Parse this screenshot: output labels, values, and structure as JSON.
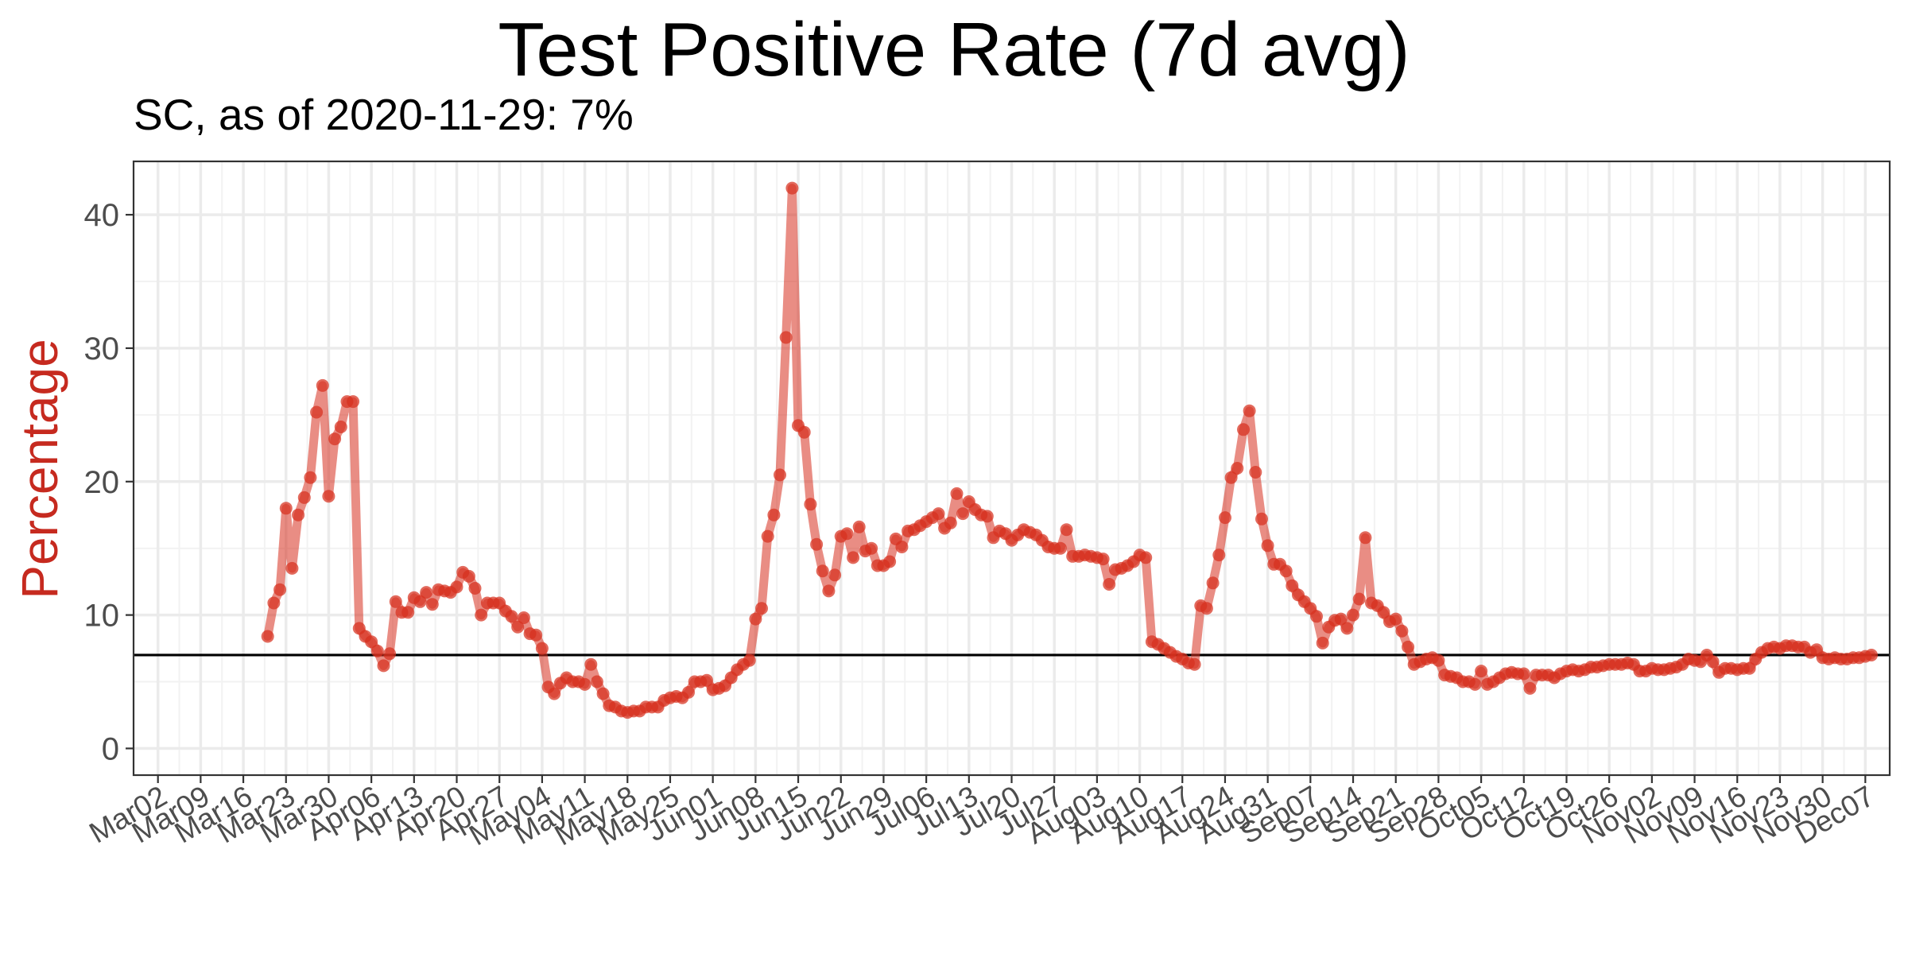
{
  "chart_data": {
    "type": "line",
    "title": "Test Positive Rate (7d avg)",
    "subtitle": "SC, as of 2020-11-29:  7%",
    "xlabel": "",
    "ylabel": "Percentage",
    "x_axis": "date",
    "xlim": [
      "2020-02-27",
      "2020-12-11"
    ],
    "ylim": [
      -2,
      44
    ],
    "y_ticks": [
      0,
      10,
      20,
      30,
      40
    ],
    "x_ticks": [
      {
        "date": "2020-03-02",
        "label": "Mar02"
      },
      {
        "date": "2020-03-09",
        "label": "Mar09"
      },
      {
        "date": "2020-03-16",
        "label": "Mar16"
      },
      {
        "date": "2020-03-23",
        "label": "Mar23"
      },
      {
        "date": "2020-03-30",
        "label": "Mar30"
      },
      {
        "date": "2020-04-06",
        "label": "Apr06"
      },
      {
        "date": "2020-04-13",
        "label": "Apr13"
      },
      {
        "date": "2020-04-20",
        "label": "Apr20"
      },
      {
        "date": "2020-04-27",
        "label": "Apr27"
      },
      {
        "date": "2020-05-04",
        "label": "May04"
      },
      {
        "date": "2020-05-11",
        "label": "May11"
      },
      {
        "date": "2020-05-18",
        "label": "May18"
      },
      {
        "date": "2020-05-25",
        "label": "May25"
      },
      {
        "date": "2020-06-01",
        "label": "Jun01"
      },
      {
        "date": "2020-06-08",
        "label": "Jun08"
      },
      {
        "date": "2020-06-15",
        "label": "Jun15"
      },
      {
        "date": "2020-06-22",
        "label": "Jun22"
      },
      {
        "date": "2020-06-29",
        "label": "Jun29"
      },
      {
        "date": "2020-07-06",
        "label": "Jul06"
      },
      {
        "date": "2020-07-13",
        "label": "Jul13"
      },
      {
        "date": "2020-07-20",
        "label": "Jul20"
      },
      {
        "date": "2020-07-27",
        "label": "Jul27"
      },
      {
        "date": "2020-08-03",
        "label": "Aug03"
      },
      {
        "date": "2020-08-10",
        "label": "Aug10"
      },
      {
        "date": "2020-08-17",
        "label": "Aug17"
      },
      {
        "date": "2020-08-24",
        "label": "Aug24"
      },
      {
        "date": "2020-08-31",
        "label": "Aug31"
      },
      {
        "date": "2020-09-07",
        "label": "Sep07"
      },
      {
        "date": "2020-09-14",
        "label": "Sep14"
      },
      {
        "date": "2020-09-21",
        "label": "Sep21"
      },
      {
        "date": "2020-09-28",
        "label": "Sep28"
      },
      {
        "date": "2020-10-05",
        "label": "Oct05"
      },
      {
        "date": "2020-10-12",
        "label": "Oct12"
      },
      {
        "date": "2020-10-19",
        "label": "Oct19"
      },
      {
        "date": "2020-10-26",
        "label": "Oct26"
      },
      {
        "date": "2020-11-02",
        "label": "Nov02"
      },
      {
        "date": "2020-11-09",
        "label": "Nov09"
      },
      {
        "date": "2020-11-16",
        "label": "Nov16"
      },
      {
        "date": "2020-11-23",
        "label": "Nov23"
      },
      {
        "date": "2020-11-30",
        "label": "Nov30"
      },
      {
        "date": "2020-12-07",
        "label": "Dec07"
      }
    ],
    "reference_line": {
      "y": 7,
      "color": "#000000"
    },
    "grid": true,
    "legend": "none",
    "series_color": "#d7301f",
    "series": [
      {
        "start_date": "2020-03-20",
        "values": [
          8.4,
          10.9,
          11.9,
          18.0,
          13.5,
          17.5,
          18.8,
          20.3,
          25.2,
          27.2,
          18.9,
          23.2,
          24.1,
          26.0,
          26.0,
          9.0,
          8.4,
          8.0,
          7.3,
          6.2,
          7.1,
          11.0,
          10.2,
          10.2,
          11.3,
          11.0,
          11.7,
          10.8,
          11.9,
          11.8,
          11.7,
          12.1,
          13.2,
          12.9,
          12.0,
          10.0,
          10.9,
          10.9,
          10.9,
          10.3,
          9.9,
          9.1,
          9.8,
          8.6,
          8.5,
          7.5,
          4.6,
          4.1,
          4.9,
          5.3,
          5.0,
          5.0,
          4.8,
          6.3,
          5.0,
          4.1,
          3.2,
          3.1,
          2.8,
          2.7,
          2.8,
          2.8,
          3.1,
          3.1,
          3.1,
          3.6,
          3.8,
          3.9,
          3.8,
          4.2,
          5.0,
          5.0,
          5.1,
          4.4,
          4.5,
          4.7,
          5.3,
          5.9,
          6.3,
          6.6,
          9.7,
          10.5,
          15.9,
          17.5,
          20.5,
          30.8,
          42.0,
          24.2,
          23.7,
          18.3,
          15.3,
          13.3,
          11.8,
          13.0,
          15.9,
          16.1,
          14.3,
          16.6,
          14.8,
          15.0,
          13.7,
          13.7,
          14.0,
          15.7,
          15.1,
          16.3,
          16.4,
          16.7,
          17.0,
          17.3,
          17.6,
          16.5,
          16.9,
          19.1,
          17.6,
          18.5,
          17.9,
          17.5,
          17.4,
          15.8,
          16.3,
          16.1,
          15.6,
          16.0,
          16.4,
          16.2,
          16.0,
          15.6,
          15.1,
          15.0,
          15.0,
          16.4,
          14.4,
          14.4,
          14.5,
          14.4,
          14.3,
          14.2,
          12.3,
          13.4,
          13.5,
          13.7,
          14.0,
          14.5,
          14.3,
          8.0,
          7.8,
          7.5,
          7.2,
          6.9,
          6.7,
          6.4,
          6.3,
          10.7,
          10.5,
          12.4,
          14.5,
          17.3,
          20.3,
          21.0,
          23.9,
          25.3,
          20.7,
          17.2,
          15.2,
          13.8,
          13.8,
          13.3,
          12.2,
          11.5,
          11.0,
          10.5,
          9.9,
          7.9,
          9.1,
          9.6,
          9.7,
          9.0,
          10.0,
          11.2,
          15.8,
          10.9,
          10.7,
          10.2,
          9.5,
          9.7,
          8.8,
          7.6,
          6.3,
          6.5,
          6.7,
          6.8,
          6.6,
          5.5,
          5.4,
          5.3,
          5.0,
          5.0,
          4.8,
          5.8,
          4.8,
          5.0,
          5.3,
          5.6,
          5.7,
          5.6,
          5.6,
          4.5,
          5.5,
          5.5,
          5.5,
          5.3,
          5.6,
          5.8,
          5.9,
          5.8,
          5.9,
          6.1,
          6.1,
          6.2,
          6.3,
          6.3,
          6.3,
          6.4,
          6.3,
          5.8,
          5.8,
          6.0,
          5.9,
          5.9,
          6.0,
          6.1,
          6.3,
          6.7,
          6.6,
          6.5,
          7.0,
          6.5,
          5.7,
          6.0,
          6.0,
          5.9,
          6.0,
          6.0,
          6.7,
          7.2,
          7.5,
          7.6,
          7.5,
          7.7,
          7.7,
          7.6,
          7.6,
          7.2,
          7.4,
          6.8,
          6.7,
          6.8,
          6.7,
          6.7,
          6.8,
          6.8,
          6.9,
          7.0
        ]
      }
    ]
  }
}
